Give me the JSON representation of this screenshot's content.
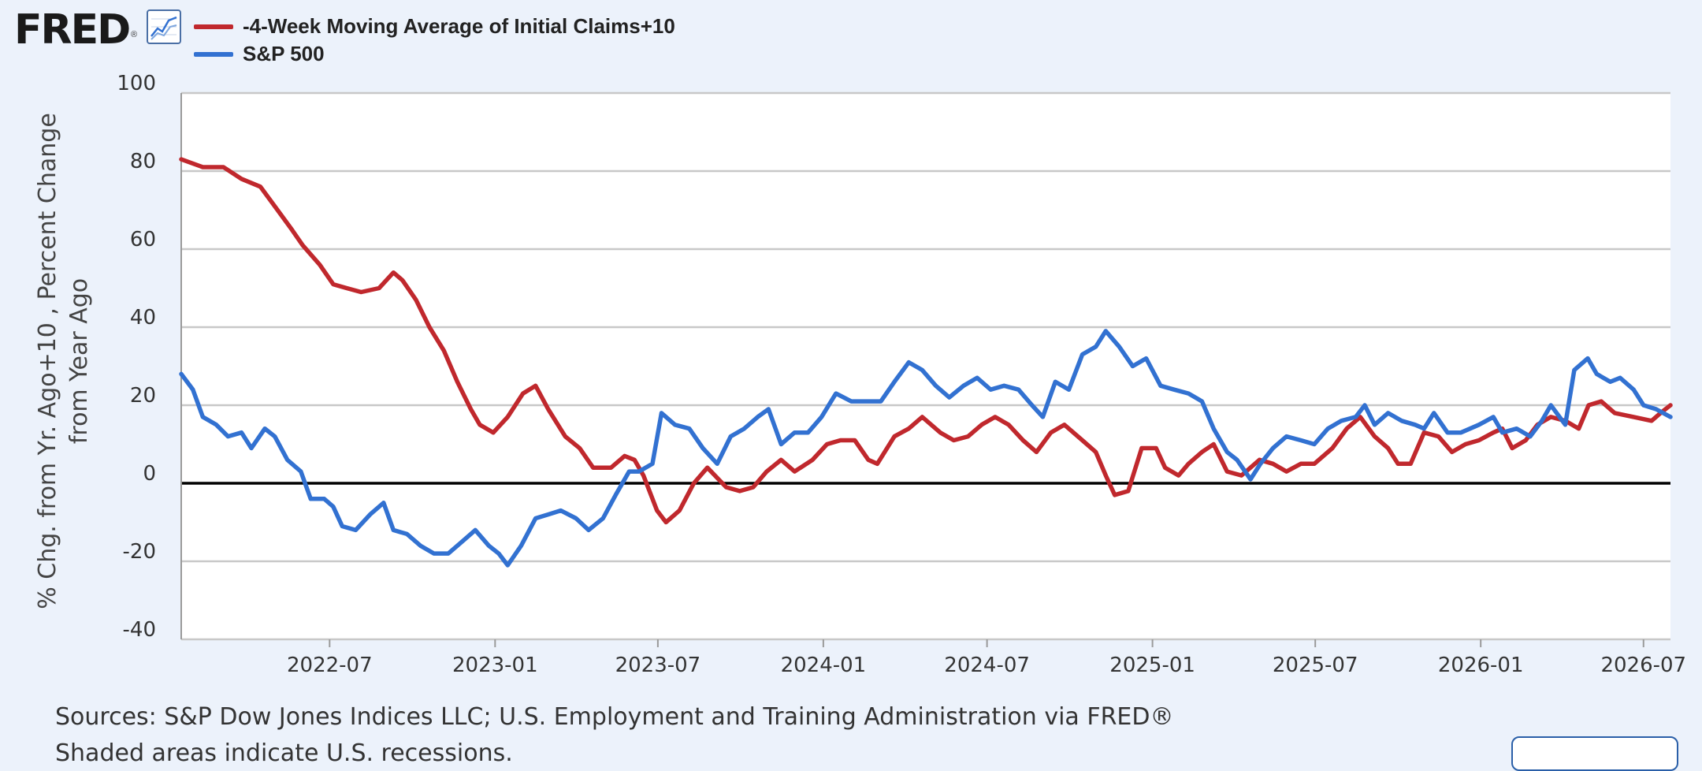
{
  "logo": {
    "text": "FRED",
    "reg": "®"
  },
  "icons": {
    "chart": "line-chart-icon"
  },
  "sources": "Sources: S&P Dow Jones Indices LLC; U.S. Employment and Training Administration via FRED®",
  "next_line": "Shaded areas indicate U.S. recessions.",
  "chart_data": {
    "type": "line",
    "title": "",
    "ylabel_lines": [
      "% Chg. from Yr. Ago+10 , Percent Change",
      "from Year Ago"
    ],
    "xlabel": "",
    "ylim": [
      -40,
      100
    ],
    "yticks": [
      -40,
      -20,
      0,
      20,
      40,
      60,
      80,
      100
    ],
    "xlim": [
      "2022-01-17",
      "2026-07-31"
    ],
    "xticks": [
      "2022-07",
      "2023-01",
      "2023-07",
      "2024-01",
      "2024-07",
      "2025-01",
      "2025-07",
      "2026-01",
      "2026-07"
    ],
    "grid": true,
    "legend_position": "top-left",
    "zero_line": true,
    "series": [
      {
        "name": "-4-Week Moving Average of Initial Claims+10",
        "color": "#c0282d",
        "points": [
          [
            "2022-01-17",
            83
          ],
          [
            "2022-02-10",
            81
          ],
          [
            "2022-03-05",
            81
          ],
          [
            "2022-03-25",
            78
          ],
          [
            "2022-04-15",
            76
          ],
          [
            "2022-05-01",
            71
          ],
          [
            "2022-05-20",
            65
          ],
          [
            "2022-06-01",
            61
          ],
          [
            "2022-06-20",
            56
          ],
          [
            "2022-07-05",
            51
          ],
          [
            "2022-07-20",
            50
          ],
          [
            "2022-08-05",
            49
          ],
          [
            "2022-08-25",
            50
          ],
          [
            "2022-09-10",
            54
          ],
          [
            "2022-09-20",
            52
          ],
          [
            "2022-10-05",
            47
          ],
          [
            "2022-10-20",
            40
          ],
          [
            "2022-11-05",
            34
          ],
          [
            "2022-11-20",
            26
          ],
          [
            "2022-12-05",
            19
          ],
          [
            "2022-12-15",
            15
          ],
          [
            "2022-12-30",
            13
          ],
          [
            "2023-01-15",
            17
          ],
          [
            "2023-02-01",
            23
          ],
          [
            "2023-02-15",
            25
          ],
          [
            "2023-03-01",
            19
          ],
          [
            "2023-03-20",
            12
          ],
          [
            "2023-04-05",
            9
          ],
          [
            "2023-04-20",
            4
          ],
          [
            "2023-05-10",
            4
          ],
          [
            "2023-05-25",
            7
          ],
          [
            "2023-06-05",
            6
          ],
          [
            "2023-06-15",
            2
          ],
          [
            "2023-06-30",
            -7
          ],
          [
            "2023-07-10",
            -10
          ],
          [
            "2023-07-25",
            -7
          ],
          [
            "2023-08-10",
            0
          ],
          [
            "2023-08-25",
            4
          ],
          [
            "2023-09-15",
            -1
          ],
          [
            "2023-09-30",
            -2
          ],
          [
            "2023-10-15",
            -1
          ],
          [
            "2023-10-30",
            3
          ],
          [
            "2023-11-15",
            6
          ],
          [
            "2023-11-30",
            3
          ],
          [
            "2023-12-20",
            6
          ],
          [
            "2024-01-05",
            10
          ],
          [
            "2024-01-20",
            11
          ],
          [
            "2024-02-05",
            11
          ],
          [
            "2024-02-20",
            6
          ],
          [
            "2024-03-01",
            5
          ],
          [
            "2024-03-20",
            12
          ],
          [
            "2024-04-05",
            14
          ],
          [
            "2024-04-20",
            17
          ],
          [
            "2024-05-10",
            13
          ],
          [
            "2024-05-25",
            11
          ],
          [
            "2024-06-10",
            12
          ],
          [
            "2024-06-25",
            15
          ],
          [
            "2024-07-10",
            17
          ],
          [
            "2024-07-25",
            15
          ],
          [
            "2024-08-10",
            11
          ],
          [
            "2024-08-25",
            8
          ],
          [
            "2024-09-10",
            13
          ],
          [
            "2024-09-25",
            15
          ],
          [
            "2024-10-15",
            11
          ],
          [
            "2024-10-30",
            8
          ],
          [
            "2024-11-10",
            2
          ],
          [
            "2024-11-20",
            -3
          ],
          [
            "2024-12-05",
            -2
          ],
          [
            "2024-12-20",
            9
          ],
          [
            "2025-01-05",
            9
          ],
          [
            "2025-01-15",
            4
          ],
          [
            "2025-01-30",
            2
          ],
          [
            "2025-02-10",
            5
          ],
          [
            "2025-02-25",
            8
          ],
          [
            "2025-03-10",
            10
          ],
          [
            "2025-03-25",
            3
          ],
          [
            "2025-04-10",
            2
          ],
          [
            "2025-04-30",
            6
          ],
          [
            "2025-05-15",
            5
          ],
          [
            "2025-05-30",
            3
          ],
          [
            "2025-06-15",
            5
          ],
          [
            "2025-06-30",
            5
          ],
          [
            "2025-07-20",
            9
          ],
          [
            "2025-08-05",
            14
          ],
          [
            "2025-08-20",
            17
          ],
          [
            "2025-09-05",
            12
          ],
          [
            "2025-09-20",
            9
          ],
          [
            "2025-10-01",
            5
          ],
          [
            "2025-10-15",
            5
          ],
          [
            "2025-10-30",
            13
          ],
          [
            "2025-11-15",
            12
          ],
          [
            "2025-11-30",
            8
          ],
          [
            "2025-12-15",
            10
          ],
          [
            "2025-12-30",
            11
          ],
          [
            "2026-01-15",
            13
          ],
          [
            "2026-01-25",
            14
          ],
          [
            "2026-02-05",
            9
          ],
          [
            "2026-02-20",
            11
          ],
          [
            "2026-03-05",
            15
          ],
          [
            "2026-03-20",
            17
          ],
          [
            "2026-04-05",
            16
          ],
          [
            "2026-04-20",
            14
          ],
          [
            "2026-05-01",
            20
          ],
          [
            "2026-05-15",
            21
          ],
          [
            "2026-05-30",
            18
          ],
          [
            "2026-06-20",
            17
          ],
          [
            "2026-07-10",
            16
          ],
          [
            "2026-07-20",
            18
          ],
          [
            "2026-07-31",
            20
          ]
        ]
      },
      {
        "name": "S&P 500",
        "color": "#3271d1",
        "points": [
          [
            "2022-01-17",
            28
          ],
          [
            "2022-01-30",
            24
          ],
          [
            "2022-02-10",
            17
          ],
          [
            "2022-02-25",
            15
          ],
          [
            "2022-03-10",
            12
          ],
          [
            "2022-03-25",
            13
          ],
          [
            "2022-04-05",
            9
          ],
          [
            "2022-04-20",
            14
          ],
          [
            "2022-05-01",
            12
          ],
          [
            "2022-05-15",
            6
          ],
          [
            "2022-05-30",
            3
          ],
          [
            "2022-06-10",
            -4
          ],
          [
            "2022-06-25",
            -4
          ],
          [
            "2022-07-05",
            -6
          ],
          [
            "2022-07-15",
            -11
          ],
          [
            "2022-07-30",
            -12
          ],
          [
            "2022-08-15",
            -8
          ],
          [
            "2022-08-30",
            -5
          ],
          [
            "2022-09-10",
            -12
          ],
          [
            "2022-09-25",
            -13
          ],
          [
            "2022-10-10",
            -16
          ],
          [
            "2022-10-25",
            -18
          ],
          [
            "2022-11-10",
            -18
          ],
          [
            "2022-11-25",
            -15
          ],
          [
            "2022-12-10",
            -12
          ],
          [
            "2022-12-25",
            -16
          ],
          [
            "2023-01-05",
            -18
          ],
          [
            "2023-01-15",
            -21
          ],
          [
            "2023-01-30",
            -16
          ],
          [
            "2023-02-15",
            -9
          ],
          [
            "2023-03-01",
            -8
          ],
          [
            "2023-03-15",
            -7
          ],
          [
            "2023-04-01",
            -9
          ],
          [
            "2023-04-15",
            -12
          ],
          [
            "2023-05-01",
            -9
          ],
          [
            "2023-05-15",
            -3
          ],
          [
            "2023-05-30",
            3
          ],
          [
            "2023-06-10",
            3
          ],
          [
            "2023-06-25",
            5
          ],
          [
            "2023-07-05",
            18
          ],
          [
            "2023-07-20",
            15
          ],
          [
            "2023-08-05",
            14
          ],
          [
            "2023-08-20",
            9
          ],
          [
            "2023-09-05",
            5
          ],
          [
            "2023-09-20",
            12
          ],
          [
            "2023-10-05",
            14
          ],
          [
            "2023-10-20",
            17
          ],
          [
            "2023-11-01",
            19
          ],
          [
            "2023-11-15",
            10
          ],
          [
            "2023-11-30",
            13
          ],
          [
            "2023-12-15",
            13
          ],
          [
            "2023-12-30",
            17
          ],
          [
            "2024-01-15",
            23
          ],
          [
            "2024-02-01",
            21
          ],
          [
            "2024-02-15",
            21
          ],
          [
            "2024-03-05",
            21
          ],
          [
            "2024-03-20",
            26
          ],
          [
            "2024-04-05",
            31
          ],
          [
            "2024-04-20",
            29
          ],
          [
            "2024-05-05",
            25
          ],
          [
            "2024-05-20",
            22
          ],
          [
            "2024-06-05",
            25
          ],
          [
            "2024-06-20",
            27
          ],
          [
            "2024-07-05",
            24
          ],
          [
            "2024-07-20",
            25
          ],
          [
            "2024-08-05",
            24
          ],
          [
            "2024-08-20",
            20
          ],
          [
            "2024-09-01",
            17
          ],
          [
            "2024-09-15",
            26
          ],
          [
            "2024-09-30",
            24
          ],
          [
            "2024-10-15",
            33
          ],
          [
            "2024-10-30",
            35
          ],
          [
            "2024-11-10",
            39
          ],
          [
            "2024-11-25",
            35
          ],
          [
            "2024-12-10",
            30
          ],
          [
            "2024-12-25",
            32
          ],
          [
            "2025-01-10",
            25
          ],
          [
            "2025-01-25",
            24
          ],
          [
            "2025-02-10",
            23
          ],
          [
            "2025-02-25",
            21
          ],
          [
            "2025-03-10",
            14
          ],
          [
            "2025-03-25",
            8
          ],
          [
            "2025-04-05",
            6
          ],
          [
            "2025-04-20",
            1
          ],
          [
            "2025-05-01",
            5
          ],
          [
            "2025-05-15",
            9
          ],
          [
            "2025-05-30",
            12
          ],
          [
            "2025-06-15",
            11
          ],
          [
            "2025-06-30",
            10
          ],
          [
            "2025-07-15",
            14
          ],
          [
            "2025-07-30",
            16
          ],
          [
            "2025-08-15",
            17
          ],
          [
            "2025-08-25",
            20
          ],
          [
            "2025-09-05",
            15
          ],
          [
            "2025-09-20",
            18
          ],
          [
            "2025-10-05",
            16
          ],
          [
            "2025-10-20",
            15
          ],
          [
            "2025-10-30",
            14
          ],
          [
            "2025-11-10",
            18
          ],
          [
            "2025-11-25",
            13
          ],
          [
            "2025-12-10",
            13
          ],
          [
            "2025-12-30",
            15
          ],
          [
            "2026-01-15",
            17
          ],
          [
            "2026-01-25",
            13
          ],
          [
            "2026-02-10",
            14
          ],
          [
            "2026-02-25",
            12
          ],
          [
            "2026-03-10",
            16
          ],
          [
            "2026-03-20",
            20
          ],
          [
            "2026-04-05",
            15
          ],
          [
            "2026-04-15",
            29
          ],
          [
            "2026-04-30",
            32
          ],
          [
            "2026-05-10",
            28
          ],
          [
            "2026-05-25",
            26
          ],
          [
            "2026-06-05",
            27
          ],
          [
            "2026-06-20",
            24
          ],
          [
            "2026-07-01",
            20
          ],
          [
            "2026-07-15",
            19
          ],
          [
            "2026-07-31",
            17
          ]
        ]
      }
    ]
  }
}
